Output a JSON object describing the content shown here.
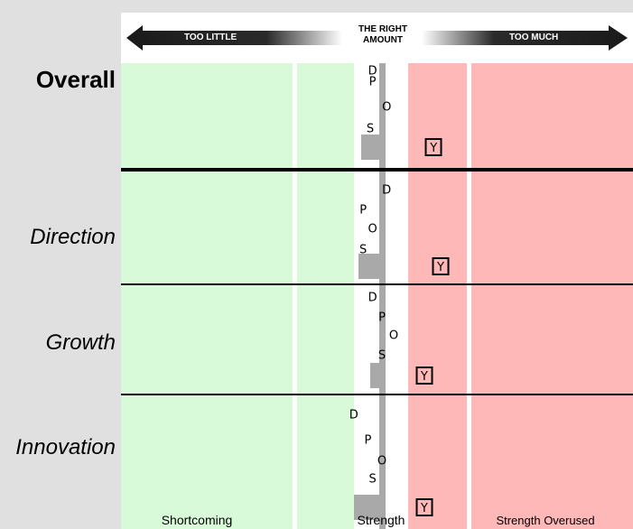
{
  "chart_data": {
    "type": "scatter",
    "title": "",
    "header": {
      "left": "TOO LITTLE",
      "center_line1": "THE RIGHT",
      "center_line2": "AMOUNT",
      "right": "TOO MUCH"
    },
    "zones": [
      {
        "label": "Shortcoming",
        "from": -100,
        "to": -40,
        "color": "#d9fad9"
      },
      {
        "label": "Strength",
        "from": -40,
        "to": 40,
        "color": "#ffffff"
      },
      {
        "label": "Strength Overused",
        "from": 40,
        "to": 100,
        "color": "#ffb8b8"
      }
    ],
    "zone_colors": {
      "shortcoming": "#d9fad9",
      "strength": "#ffffff",
      "overused": "#ffb8b8",
      "bar": "#a9a9a9"
    },
    "rows": [
      {
        "label": "Overall",
        "bold": true,
        "bar_start": -9,
        "points": [
          {
            "key": "D",
            "x": -4,
            "pos": 0.08
          },
          {
            "key": "P",
            "x": -4,
            "pos": 0.18
          },
          {
            "key": "O",
            "x": 2,
            "pos": 0.42
          },
          {
            "key": "S",
            "x": -5,
            "pos": 0.63
          },
          {
            "key": "Y",
            "x": 22,
            "pos": 0.8
          }
        ]
      },
      {
        "label": "Direction",
        "bold": false,
        "bar_start": -10,
        "points": [
          {
            "key": "D",
            "x": 2,
            "pos": 0.17
          },
          {
            "key": "P",
            "x": -8,
            "pos": 0.35
          },
          {
            "key": "O",
            "x": -4,
            "pos": 0.52
          },
          {
            "key": "S",
            "x": -8,
            "pos": 0.7
          },
          {
            "key": "Y",
            "x": 25,
            "pos": 0.85
          }
        ]
      },
      {
        "label": "Growth",
        "bold": false,
        "bar_start": -5,
        "points": [
          {
            "key": "D",
            "x": -4,
            "pos": 0.12
          },
          {
            "key": "P",
            "x": 0,
            "pos": 0.3
          },
          {
            "key": "O",
            "x": 5,
            "pos": 0.47
          },
          {
            "key": "S",
            "x": 0,
            "pos": 0.65
          },
          {
            "key": "Y",
            "x": 18,
            "pos": 0.83
          }
        ]
      },
      {
        "label": "Innovation",
        "bold": false,
        "bar_start": -12,
        "points": [
          {
            "key": "D",
            "x": -12,
            "pos": 0.15
          },
          {
            "key": "P",
            "x": -6,
            "pos": 0.34
          },
          {
            "key": "O",
            "x": 0,
            "pos": 0.49
          },
          {
            "key": "S",
            "x": -4,
            "pos": 0.63
          },
          {
            "key": "Y",
            "x": 18,
            "pos": 0.84
          }
        ]
      }
    ]
  }
}
